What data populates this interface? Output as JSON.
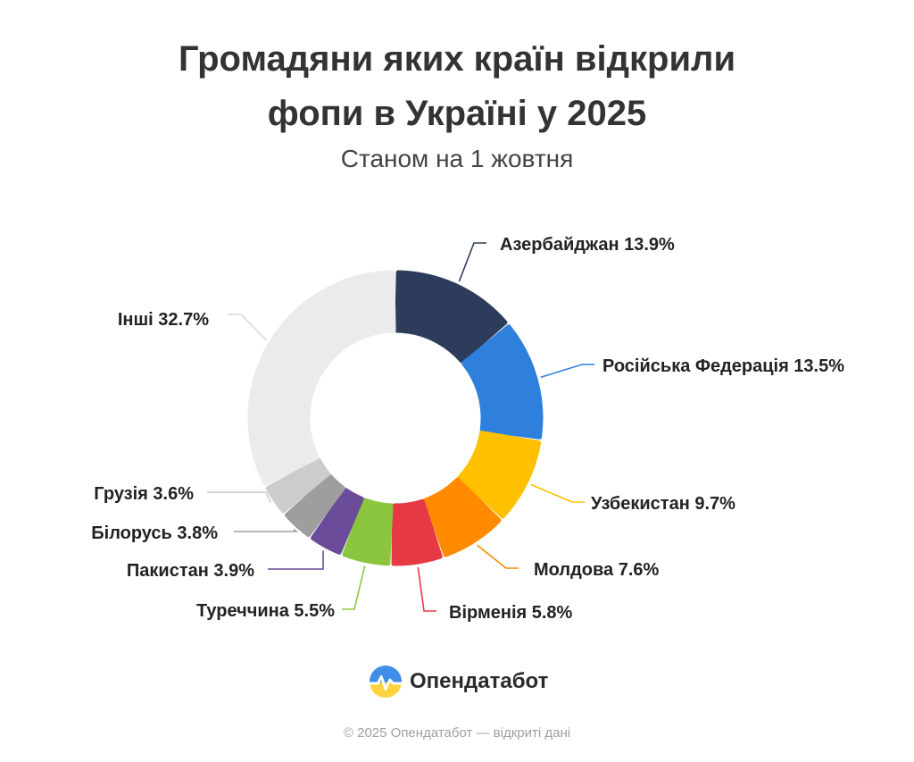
{
  "title_lines": [
    "Громадяни яких країн відкрили",
    "фопи в Україні у 2025"
  ],
  "subtitle": "Станом на 1 жовтня",
  "chart_data": {
    "type": "pie",
    "variant": "donut",
    "unit": "%",
    "slices": [
      {
        "label": "Азербайджан",
        "value": 13.9,
        "color": "#2e3c5c"
      },
      {
        "label": "Російська Федерація",
        "value": 13.5,
        "color": "#2f80dd"
      },
      {
        "label": "Узбекистан",
        "value": 9.7,
        "color": "#ffc000"
      },
      {
        "label": "Молдова",
        "value": 7.6,
        "color": "#ff8a00"
      },
      {
        "label": "Вірменія",
        "value": 5.8,
        "color": "#e63946"
      },
      {
        "label": "Туреччина",
        "value": 5.5,
        "color": "#8cc63f"
      },
      {
        "label": "Пакистан",
        "value": 3.9,
        "color": "#6b4c9a"
      },
      {
        "label": "Білорусь",
        "value": 3.8,
        "color": "#9e9e9e"
      },
      {
        "label": "Грузія",
        "value": 3.6,
        "color": "#cccccc"
      },
      {
        "label": "Інші",
        "value": 32.7,
        "color": "#ebebeb"
      }
    ]
  },
  "brand": {
    "name": "Опендатабот",
    "logo_icon": "opendatabot-logo-icon"
  },
  "footer": "© 2025 Опендатабот — відкриті дані"
}
